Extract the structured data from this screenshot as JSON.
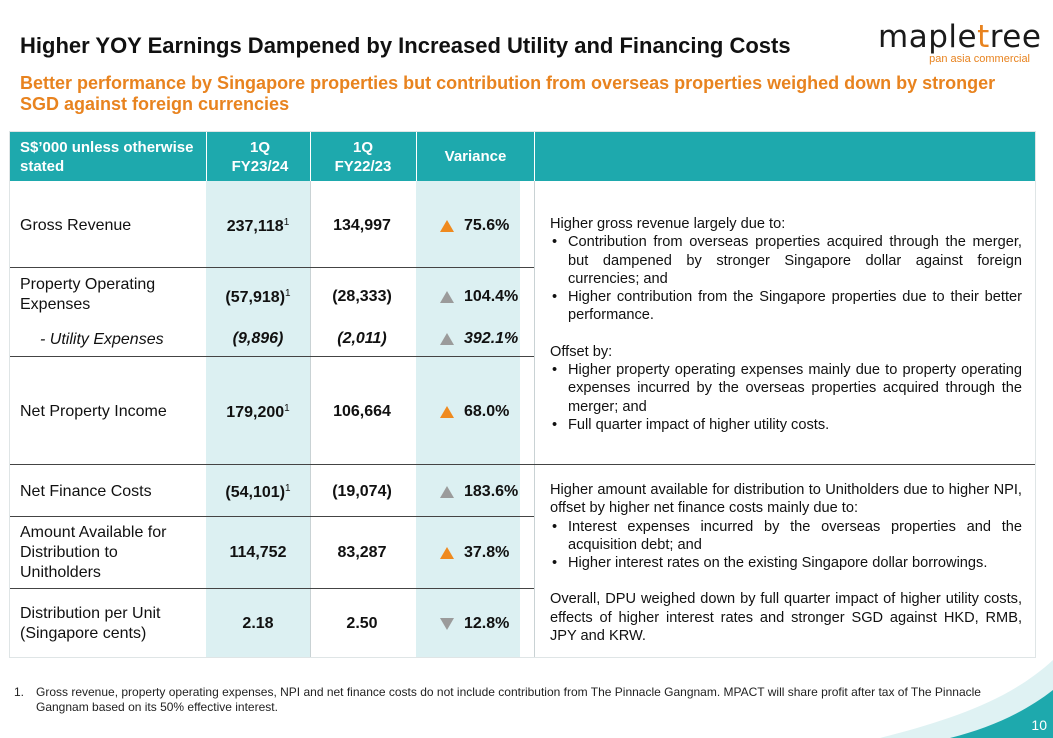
{
  "header": {
    "title": "Higher YOY Earnings Dampened by Increased Utility and Financing Costs",
    "subtitle": "Better performance by Singapore properties but contribution from overseas properties weighed down by stronger SGD against foreign currencies"
  },
  "logo": {
    "word_part1": "maple",
    "word_accent": "t",
    "word_part2": "ree",
    "tagline": "pan asia commercial"
  },
  "table": {
    "headers": {
      "metric": "S$’000 unless otherwise stated",
      "current": "1Q FY23/24",
      "prior": "1Q FY22/23",
      "variance": "Variance"
    },
    "rows": [
      {
        "label": "Gross Revenue",
        "current": "237,118",
        "current_note": "1",
        "prior": "134,997",
        "variance": "75.6%",
        "arrow": "up-orange"
      },
      {
        "label": "Property Operating Expenses",
        "current": "(57,918)",
        "current_note": "1",
        "prior": "(28,333)",
        "variance": "104.4%",
        "arrow": "up-grey"
      },
      {
        "label": "- Utility Expenses",
        "current": "(9,896)",
        "prior": "(2,011)",
        "variance": "392.1%",
        "arrow": "up-grey"
      },
      {
        "label": "Net Property Income",
        "current": "179,200",
        "current_note": "1",
        "prior": "106,664",
        "variance": "68.0%",
        "arrow": "up-orange"
      },
      {
        "label": "Net Finance Costs",
        "current": "(54,101)",
        "current_note": "1",
        "prior": "(19,074)",
        "variance": "183.6%",
        "arrow": "up-grey"
      },
      {
        "label": "Amount Available for Distribution to Unitholders",
        "current": "114,752",
        "prior": "83,287",
        "variance": "37.8%",
        "arrow": "up-orange"
      },
      {
        "label": "Distribution per Unit (Singapore cents)",
        "current": "2.18",
        "prior": "2.50",
        "variance": "12.8%",
        "arrow": "down-grey"
      }
    ]
  },
  "commentary": {
    "block1": {
      "intro": "Higher gross revenue largely due to:",
      "bullets": [
        "Contribution from overseas properties acquired through the merger, but dampened by stronger Singapore dollar against foreign currencies; and",
        "Higher contribution from the Singapore properties due to their better performance."
      ],
      "offset_intro": "Offset by:",
      "offset_bullets": [
        "Higher property operating expenses mainly due to property operating expenses incurred by the overseas properties acquired through the merger; and",
        "Full quarter impact of higher utility costs."
      ]
    },
    "block2": {
      "intro": "Higher amount available for distribution to Unitholders due to higher NPI, offset by higher net finance costs mainly due to:",
      "bullets": [
        "Interest expenses incurred by the overseas properties and the acquisition debt; and",
        "Higher interest rates on the existing Singapore dollar borrowings."
      ],
      "closing": "Overall, DPU weighed down by full quarter impact of higher utility costs, effects of higher interest rates and stronger SGD against HKD, RMB, JPY and KRW."
    }
  },
  "footnote": {
    "number": "1.",
    "text": "Gross revenue, property operating expenses, NPI and net finance costs do not include contribution from The Pinnacle Gangnam. MPACT will share profit after tax of The Pinnacle Gangnam based on its 50% effective interest."
  },
  "page_number": "10",
  "colors": {
    "teal": "#1ea9ad",
    "orange": "#e8831f",
    "light_teal": "#dcf0f2",
    "arrow_grey": "#9b9b9b"
  }
}
